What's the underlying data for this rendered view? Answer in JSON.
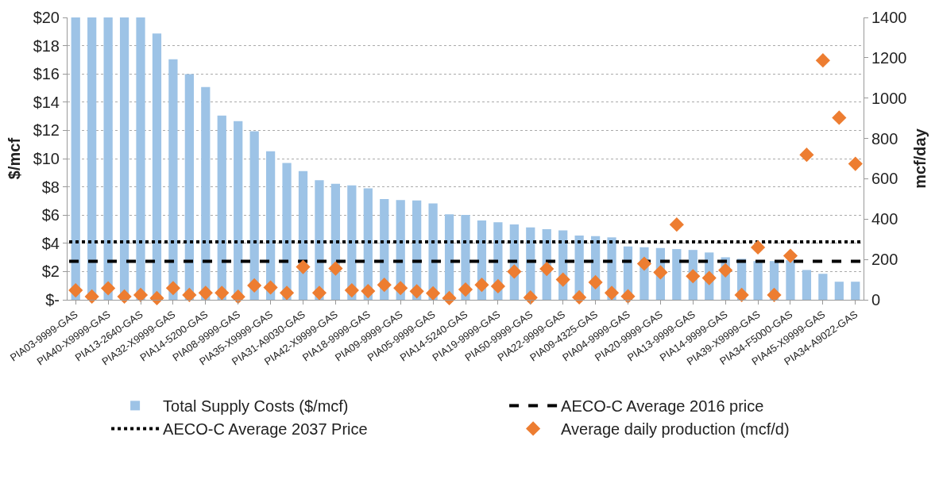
{
  "chart_data": {
    "type": "bar",
    "ylabel": "$/mcf",
    "y2label": "mcf/day",
    "categories": [
      "PIA03-9999-GAS",
      null,
      "PIA40-X9999-GAS",
      null,
      "PIA13-2640-GAS",
      null,
      "PIA32-X9999-GAS",
      null,
      "PIA14-5200-GAS",
      null,
      "PIA08-9999-GAS",
      null,
      "PIA35-X9999-GAS",
      null,
      "PIA31-A9030-GAS",
      null,
      "PIA42-X9999-GAS",
      null,
      "PIA18-9999-GAS",
      null,
      "PIA09-9999-GAS",
      null,
      "PIA05-9999-GAS",
      null,
      "PIA14-5240-GAS",
      null,
      "PIA19-9999-GAS",
      null,
      "PIA50-9999-GAS",
      null,
      "PIA22-9999-GAS",
      null,
      "PIA09-4325-GAS",
      null,
      "PIA04-9999-GAS",
      null,
      "PIA20-9999-GAS",
      null,
      "PIA13-9999-GAS",
      null,
      "PIA14-9999-GAS",
      null,
      "PIA39-X9999-GAS",
      null,
      "PIA34-F5000-GAS",
      null,
      "PIA45-X9999-GAS",
      null,
      "PIA34-A9022-GAS"
    ],
    "series": [
      {
        "name": "Total Supply Costs ($/mcf)",
        "color": "#9dc3e6",
        "values": [
          20,
          20,
          20,
          20,
          20,
          18.86,
          17.04,
          15.98,
          15.07,
          13.05,
          12.66,
          11.94,
          10.52,
          9.69,
          9.11,
          8.47,
          8.21,
          8.11,
          7.89,
          7.14,
          7.06,
          7.04,
          6.82,
          6.05,
          6.01,
          5.62,
          5.49,
          5.34,
          5.13,
          5.0,
          4.92,
          4.55,
          4.51,
          4.42,
          3.78,
          3.72,
          3.66,
          3.59,
          3.53,
          3.35,
          3.01,
          2.9,
          2.74,
          2.74,
          2.8,
          2.11,
          1.84,
          1.28,
          1.28
        ]
      },
      {
        "name": "Average daily production (mcf/d)",
        "type": "scatter",
        "axis": "y2",
        "marker": "diamond",
        "color": "#ed7d31",
        "values": [
          47,
          16,
          57,
          16,
          24,
          8,
          58,
          24,
          34,
          34,
          15,
          71,
          61,
          34,
          163,
          34,
          155,
          47,
          43,
          74,
          58,
          42,
          32,
          8,
          51,
          74,
          67,
          140,
          11,
          153,
          100,
          12,
          87,
          34,
          17,
          179,
          136,
          373,
          117,
          108,
          146,
          24,
          260,
          24,
          218,
          719,
          1187,
          903,
          674
        ]
      }
    ],
    "ref_lines": [
      {
        "axis": "y",
        "value": 2.73,
        "label": "AECO-C Average 2016 price",
        "color": "#000000",
        "line_style": "dashed"
      },
      {
        "axis": "y",
        "value": 4.1,
        "label": "AECO-C Average 2037 Price",
        "color": "#000000",
        "line_style": "dotted"
      }
    ],
    "ylim": [
      0,
      20
    ],
    "yticks": [
      {
        "value": 0,
        "label": "$-"
      },
      {
        "value": 2,
        "label": "$2"
      },
      {
        "value": 4,
        "label": "$4"
      },
      {
        "value": 6,
        "label": "$6"
      },
      {
        "value": 8,
        "label": "$8"
      },
      {
        "value": 10,
        "label": "$10"
      },
      {
        "value": 12,
        "label": "$12"
      },
      {
        "value": 14,
        "label": "$14"
      },
      {
        "value": 16,
        "label": "$16"
      },
      {
        "value": 18,
        "label": "$18"
      },
      {
        "value": 20,
        "label": "$20"
      }
    ],
    "y2lim": [
      0,
      1400
    ],
    "y2ticks": [
      0,
      200,
      400,
      600,
      800,
      1000,
      1200,
      1400
    ],
    "grid": "y",
    "legend": "bottom"
  }
}
